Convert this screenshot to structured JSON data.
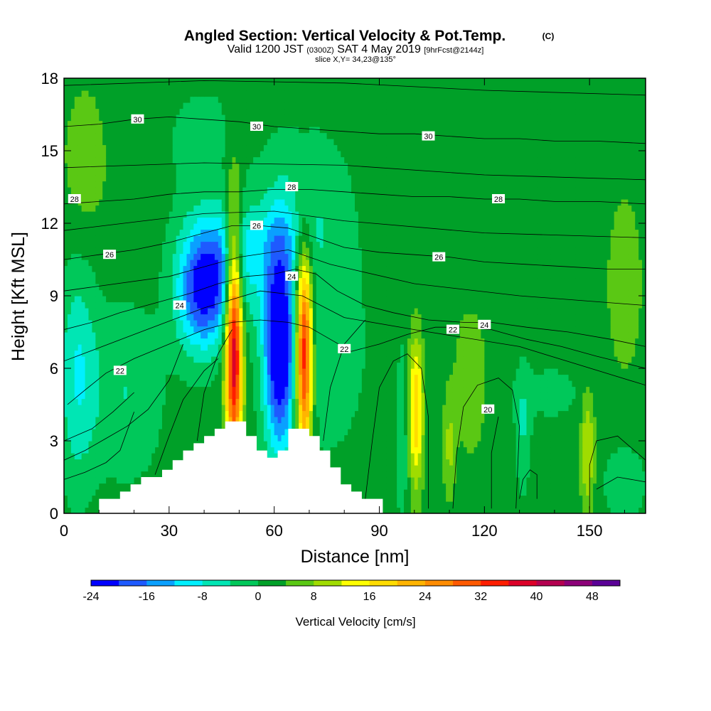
{
  "title": {
    "main": "Angled Section: Vertical Velocity & Pot.Temp.",
    "main_suffix": "(C)",
    "valid_prefix": "Valid 1200 JST",
    "valid_zulu": "(0300Z)",
    "valid_date": "SAT 4 May 2019",
    "forecast": "[9hrFcst@2144z]",
    "slice": "slice X,Y= 34,23@135°"
  },
  "axes": {
    "xlabel": "Distance [nm]",
    "ylabel": "Height [Kft MSL]",
    "xlim": [
      0,
      166
    ],
    "ylim": [
      0,
      18
    ],
    "xticks": [
      0,
      30,
      60,
      90,
      120,
      150
    ],
    "yticks": [
      0,
      3,
      6,
      9,
      12,
      15,
      18
    ]
  },
  "colorbar": {
    "title": "Vertical Velocity [cm/s]",
    "levels": [
      -24,
      -20,
      -16,
      -12,
      -8,
      -4,
      0,
      4,
      8,
      12,
      16,
      20,
      24,
      28,
      32,
      36,
      40,
      44,
      48,
      52
    ],
    "tick_labels": [
      "-24",
      "-16",
      "-8",
      "0",
      "8",
      "16",
      "24",
      "32",
      "40",
      "48"
    ],
    "tick_values": [
      -24,
      -16,
      -8,
      0,
      8,
      16,
      24,
      32,
      40,
      48
    ],
    "colors": [
      "#0000ff",
      "#1e5aff",
      "#0aa0ff",
      "#00f0ff",
      "#00e6b4",
      "#00c85a",
      "#00a028",
      "#5ac814",
      "#a0dc00",
      "#ffff00",
      "#ffdc00",
      "#ffb400",
      "#ff8c00",
      "#ff5a00",
      "#ff1e00",
      "#dc0028",
      "#b40050",
      "#8c0078",
      "#5a0096"
    ]
  },
  "chart_data": {
    "type": "heatmap",
    "title": "Angled Section: Vertical Velocity & Pot.Temp.",
    "xlabel": "Distance [nm]",
    "ylabel": "Height [Kft MSL]",
    "xlim": [
      0,
      166
    ],
    "ylim": [
      0,
      18
    ],
    "background_value": 2,
    "velocity_features": [
      {
        "x": 48.5,
        "y": 7.2,
        "sx": 1.7,
        "sy": 3.6,
        "value": 40
      },
      {
        "x": 68.5,
        "y": 6.6,
        "sx": 1.7,
        "sy": 2.9,
        "value": 38
      },
      {
        "x": 100.5,
        "y": 4.2,
        "sx": 1.4,
        "sy": 2.1,
        "value": 18
      },
      {
        "x": 61.5,
        "y": 7.0,
        "sx": 3.2,
        "sy": 3.2,
        "value": -28
      },
      {
        "x": 39,
        "y": 9.2,
        "sx": 5.0,
        "sy": 1.8,
        "value": -20
      },
      {
        "x": 47,
        "y": 10.0,
        "sx": 7.0,
        "sy": 1.8,
        "value": -12
      },
      {
        "x": 74,
        "y": 7.0,
        "sx": 8.0,
        "sy": 3.0,
        "value": -6
      },
      {
        "x": 4,
        "y": 5.8,
        "sx": 4.0,
        "sy": 3.2,
        "value": -10
      },
      {
        "x": 18,
        "y": 5.0,
        "sx": 7.0,
        "sy": 2.5,
        "value": -6
      },
      {
        "x": 58,
        "y": 11.4,
        "sx": 12.0,
        "sy": 1.2,
        "value": -5
      },
      {
        "x": 96.5,
        "y": 3.2,
        "sx": 1.0,
        "sy": 2.6,
        "value": -6
      },
      {
        "x": 116,
        "y": 5.5,
        "sx": 3.0,
        "sy": 2.0,
        "value": 6
      },
      {
        "x": 110,
        "y": 2.8,
        "sx": 1.2,
        "sy": 1.5,
        "value": 7
      },
      {
        "x": 131,
        "y": 3.4,
        "sx": 1.5,
        "sy": 1.8,
        "value": -6
      },
      {
        "x": 149.5,
        "y": 2.6,
        "sx": 1.4,
        "sy": 1.8,
        "value": 10
      },
      {
        "x": 160,
        "y": 1.3,
        "sx": 4.0,
        "sy": 1.0,
        "value": -6
      },
      {
        "x": 139,
        "y": 5.0,
        "sx": 8.0,
        "sy": 1.0,
        "value": -3
      },
      {
        "x": 6,
        "y": 14.5,
        "sx": 5.0,
        "sy": 2.5,
        "value": 4
      },
      {
        "x": 40,
        "y": 15.5,
        "sx": 10.0,
        "sy": 2.0,
        "value": -3
      },
      {
        "x": 70,
        "y": 13.5,
        "sx": 8.0,
        "sy": 2.0,
        "value": -4
      },
      {
        "x": 160,
        "y": 9.5,
        "sx": 4.0,
        "sy": 3.0,
        "value": 4
      },
      {
        "x": 105,
        "y": 15.0,
        "sx": 12.0,
        "sy": 3.0,
        "value": -2
      }
    ],
    "terrain_profile_kft": [
      [
        0,
        0
      ],
      [
        10,
        0
      ],
      [
        10,
        0.6
      ],
      [
        16,
        0.6
      ],
      [
        16,
        0.9
      ],
      [
        19,
        0.9
      ],
      [
        19,
        1.2
      ],
      [
        22,
        1.2
      ],
      [
        22,
        1.5
      ],
      [
        28,
        1.5
      ],
      [
        28,
        1.8
      ],
      [
        31,
        1.8
      ],
      [
        31,
        2.2
      ],
      [
        34,
        2.2
      ],
      [
        34,
        2.6
      ],
      [
        37,
        2.6
      ],
      [
        37,
        2.9
      ],
      [
        40,
        2.9
      ],
      [
        40,
        3.2
      ],
      [
        43,
        3.2
      ],
      [
        43,
        3.5
      ],
      [
        46,
        3.5
      ],
      [
        46,
        3.8
      ],
      [
        52,
        3.8
      ],
      [
        52,
        3.2
      ],
      [
        55,
        3.2
      ],
      [
        55,
        2.6
      ],
      [
        58,
        2.6
      ],
      [
        58,
        2.3
      ],
      [
        61,
        2.3
      ],
      [
        61,
        2.6
      ],
      [
        64,
        2.6
      ],
      [
        64,
        3.5
      ],
      [
        70,
        3.5
      ],
      [
        70,
        3.2
      ],
      [
        73,
        3.2
      ],
      [
        73,
        2.6
      ],
      [
        76,
        2.6
      ],
      [
        76,
        1.9
      ],
      [
        79,
        1.9
      ],
      [
        79,
        1.2
      ],
      [
        82,
        1.2
      ],
      [
        82,
        0.9
      ],
      [
        85,
        0.9
      ],
      [
        85,
        0.6
      ],
      [
        91,
        0.6
      ],
      [
        91,
        0
      ],
      [
        166,
        0
      ]
    ],
    "theta_contours": [
      {
        "level": 20,
        "label": "20",
        "label_at": [
          121,
          4.3
        ],
        "points": [
          [
            111,
            0.2
          ],
          [
            112,
            2.4
          ],
          [
            114,
            4.4
          ],
          [
            118,
            5.3
          ],
          [
            124,
            5.6
          ],
          [
            128,
            5.1
          ],
          [
            130,
            3.6
          ],
          [
            129,
            0.2
          ]
        ]
      },
      {
        "level": 22,
        "label": "22",
        "label_at": [
          16,
          5.9
        ],
        "points": [
          [
            1,
            4.5
          ],
          [
            6,
            5.1
          ],
          [
            12,
            5.8
          ],
          [
            20,
            6.4
          ],
          [
            30,
            7.0
          ],
          [
            40,
            7.6
          ],
          [
            48,
            7.9
          ],
          [
            56,
            8.0
          ],
          [
            64,
            7.9
          ],
          [
            70,
            7.7
          ],
          [
            76,
            7.2
          ],
          [
            82,
            6.7
          ],
          [
            90,
            7.0
          ],
          [
            98,
            7.4
          ],
          [
            106,
            7.7
          ],
          [
            114,
            7.7
          ],
          [
            122,
            7.6
          ],
          [
            132,
            7.2
          ],
          [
            142,
            6.9
          ],
          [
            152,
            6.5
          ],
          [
            166,
            6.0
          ]
        ]
      },
      {
        "level": 22,
        "label": "22",
        "label_at": [
          80,
          6.8
        ],
        "points": []
      },
      {
        "level": 22,
        "label": "22",
        "label_at": [
          111,
          7.6
        ],
        "points": []
      },
      {
        "level": 24,
        "label": "24",
        "label_at": [
          33,
          8.6
        ],
        "points": [
          [
            0,
            7.6
          ],
          [
            8,
            7.9
          ],
          [
            16,
            8.3
          ],
          [
            26,
            8.7
          ],
          [
            36,
            9.1
          ],
          [
            44,
            9.5
          ],
          [
            52,
            9.8
          ],
          [
            60,
            9.9
          ],
          [
            66,
            10.1
          ],
          [
            72,
            9.9
          ],
          [
            78,
            9.2
          ],
          [
            86,
            8.6
          ],
          [
            94,
            8.3
          ],
          [
            104,
            8.0
          ],
          [
            114,
            7.9
          ],
          [
            122,
            7.9
          ],
          [
            132,
            7.7
          ],
          [
            144,
            7.5
          ],
          [
            156,
            7.2
          ],
          [
            166,
            6.9
          ]
        ]
      },
      {
        "level": 24,
        "label": "24",
        "label_at": [
          65,
          9.8
        ],
        "points": []
      },
      {
        "level": 24,
        "label": "24",
        "label_at": [
          120,
          7.8
        ],
        "points": []
      },
      {
        "level": 26,
        "label": "26",
        "label_at": [
          13,
          10.7
        ],
        "points": [
          [
            0,
            10.5
          ],
          [
            10,
            10.7
          ],
          [
            20,
            10.9
          ],
          [
            30,
            11.2
          ],
          [
            40,
            11.6
          ],
          [
            48,
            11.9
          ],
          [
            56,
            11.9
          ],
          [
            64,
            11.8
          ],
          [
            72,
            11.4
          ],
          [
            80,
            11.0
          ],
          [
            90,
            10.8
          ],
          [
            100,
            10.7
          ],
          [
            110,
            10.6
          ],
          [
            120,
            10.4
          ],
          [
            132,
            10.3
          ],
          [
            144,
            10.2
          ],
          [
            156,
            10.1
          ],
          [
            166,
            10.1
          ]
        ]
      },
      {
        "level": 26,
        "label": "26",
        "label_at": [
          55,
          11.9
        ],
        "points": []
      },
      {
        "level": 26,
        "label": "26",
        "label_at": [
          107,
          10.6
        ],
        "points": []
      },
      {
        "level": 28,
        "label": "28",
        "label_at": [
          3,
          13.0
        ],
        "points": [
          [
            0,
            12.8
          ],
          [
            10,
            12.9
          ],
          [
            20,
            13.0
          ],
          [
            30,
            13.2
          ],
          [
            40,
            13.3
          ],
          [
            50,
            13.3
          ],
          [
            60,
            13.4
          ],
          [
            70,
            13.4
          ],
          [
            80,
            13.3
          ],
          [
            90,
            13.2
          ],
          [
            100,
            13.1
          ],
          [
            110,
            13.1
          ],
          [
            120,
            13.0
          ],
          [
            130,
            13.0
          ],
          [
            140,
            12.9
          ],
          [
            152,
            12.9
          ],
          [
            166,
            12.8
          ]
        ]
      },
      {
        "level": 28,
        "label": "28",
        "label_at": [
          65,
          13.5
        ],
        "points": []
      },
      {
        "level": 28,
        "label": "28",
        "label_at": [
          124,
          13.0
        ],
        "points": []
      },
      {
        "level": 30,
        "label": "30",
        "label_at": [
          21,
          16.3
        ],
        "points": [
          [
            0,
            16.0
          ],
          [
            10,
            16.1
          ],
          [
            20,
            16.3
          ],
          [
            30,
            16.4
          ],
          [
            40,
            16.3
          ],
          [
            50,
            16.2
          ],
          [
            60,
            16.0
          ],
          [
            70,
            15.9
          ],
          [
            80,
            15.8
          ],
          [
            90,
            15.7
          ],
          [
            100,
            15.7
          ],
          [
            110,
            15.6
          ],
          [
            120,
            15.5
          ],
          [
            130,
            15.5
          ],
          [
            140,
            15.4
          ],
          [
            152,
            15.4
          ],
          [
            166,
            15.3
          ]
        ]
      },
      {
        "level": 30,
        "label": "30",
        "label_at": [
          55,
          16.0
        ],
        "points": []
      },
      {
        "level": 30,
        "label": "30",
        "label_at": [
          104,
          15.6
        ],
        "points": []
      }
    ],
    "extra_theta_lines": [
      [
        [
          0,
          17.7
        ],
        [
          40,
          17.9
        ],
        [
          80,
          17.8
        ],
        [
          120,
          17.5
        ],
        [
          166,
          17.3
        ]
      ],
      [
        [
          0,
          14.3
        ],
        [
          40,
          14.5
        ],
        [
          80,
          14.4
        ],
        [
          120,
          14.0
        ],
        [
          166,
          13.8
        ]
      ],
      [
        [
          0,
          11.7
        ],
        [
          40,
          12.4
        ],
        [
          60,
          12.5
        ],
        [
          80,
          12.1
        ],
        [
          120,
          11.6
        ],
        [
          166,
          11.4
        ]
      ],
      [
        [
          0,
          9.2
        ],
        [
          30,
          9.8
        ],
        [
          50,
          10.6
        ],
        [
          64,
          10.9
        ],
        [
          76,
          10.3
        ],
        [
          100,
          9.5
        ],
        [
          130,
          9.0
        ],
        [
          166,
          8.6
        ]
      ],
      [
        [
          0,
          6.3
        ],
        [
          20,
          7.4
        ],
        [
          40,
          8.5
        ],
        [
          56,
          9.2
        ],
        [
          68,
          9.0
        ],
        [
          80,
          8.1
        ],
        [
          100,
          7.6
        ],
        [
          130,
          6.9
        ],
        [
          166,
          5.3
        ]
      ],
      [
        [
          0,
          3.0
        ],
        [
          8,
          3.5
        ],
        [
          14,
          4.2
        ],
        [
          20,
          5.0
        ]
      ],
      [
        [
          0,
          2.2
        ],
        [
          6,
          2.6
        ],
        [
          12,
          3.1
        ],
        [
          18,
          3.6
        ],
        [
          24,
          4.3
        ],
        [
          30,
          5.5
        ],
        [
          34,
          7.0
        ]
      ],
      [
        [
          0,
          1.4
        ],
        [
          6,
          1.7
        ],
        [
          12,
          2.1
        ],
        [
          16,
          2.6
        ],
        [
          18,
          3.4
        ],
        [
          20,
          4.2
        ]
      ],
      [
        [
          26,
          1.6
        ],
        [
          30,
          3.2
        ],
        [
          34,
          4.7
        ],
        [
          40,
          5.9
        ],
        [
          44,
          6.4
        ]
      ],
      [
        [
          38,
          3.0
        ],
        [
          40,
          5.0
        ],
        [
          44,
          6.6
        ],
        [
          48,
          7.6
        ]
      ],
      [
        [
          74,
          3.0
        ],
        [
          76,
          5.2
        ],
        [
          80,
          7.0
        ],
        [
          86,
          8.0
        ]
      ],
      [
        [
          86,
          0.6
        ],
        [
          88,
          3.0
        ],
        [
          90,
          5.2
        ],
        [
          94,
          6.3
        ],
        [
          98,
          6.6
        ],
        [
          102,
          6.0
        ],
        [
          104,
          4.0
        ],
        [
          104,
          0.2
        ]
      ],
      [
        [
          122,
          0.2
        ],
        [
          122,
          2.5
        ],
        [
          124,
          4.0
        ]
      ],
      [
        [
          130,
          0.6
        ],
        [
          131,
          1.4
        ],
        [
          133,
          1.8
        ],
        [
          135,
          1.6
        ],
        [
          135,
          0.6
        ]
      ],
      [
        [
          150,
          0.2
        ],
        [
          150,
          2.0
        ],
        [
          152,
          3.0
        ],
        [
          158,
          3.2
        ],
        [
          166,
          2.2
        ]
      ],
      [
        [
          152,
          1.0
        ],
        [
          158,
          1.5
        ],
        [
          166,
          1.3
        ]
      ]
    ]
  }
}
